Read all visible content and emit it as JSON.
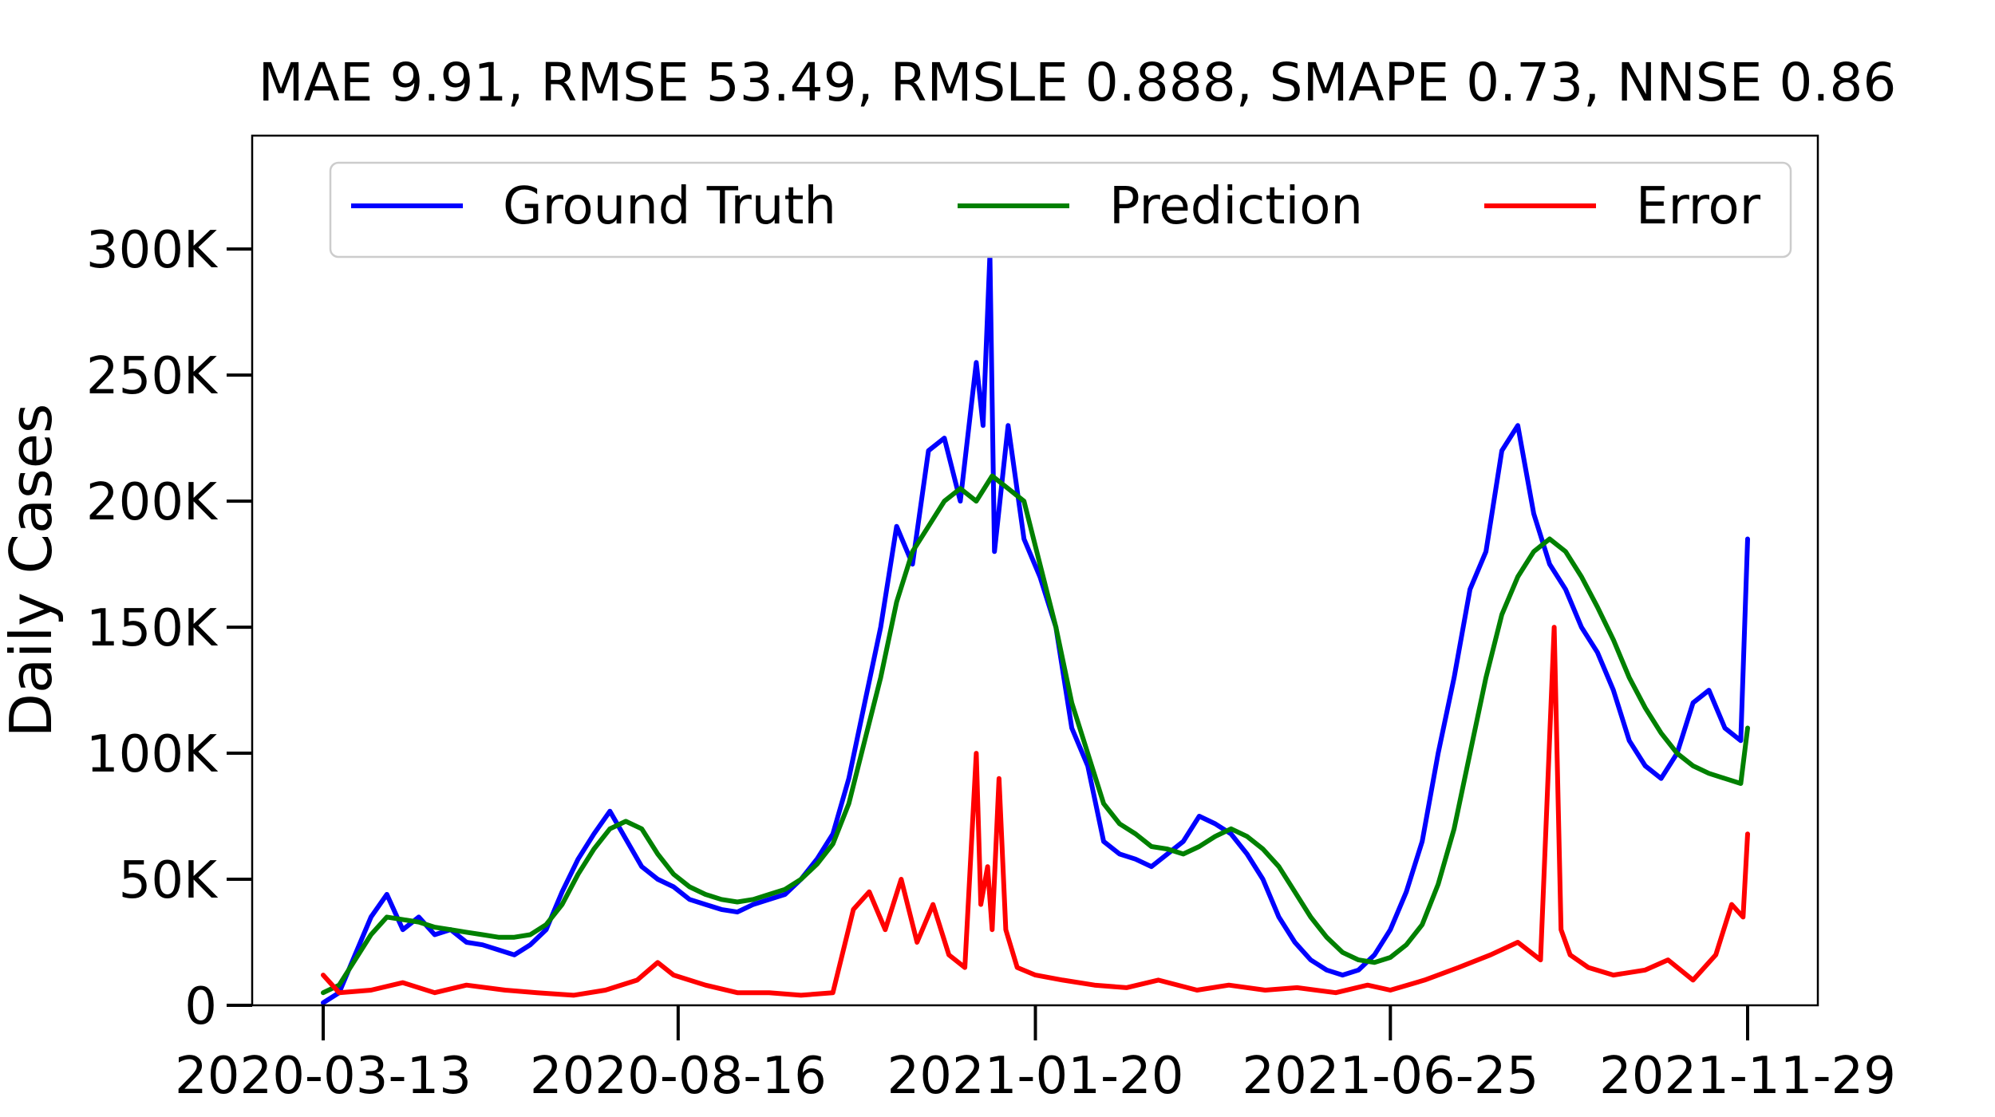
{
  "chart_data": {
    "type": "line",
    "title": "MAE 9.91, RMSE 53.49, RMSLE 0.888, SMAPE 0.73, NNSE 0.86",
    "xlabel": "",
    "ylabel": "Daily Cases",
    "x_start": "2020-03-13",
    "x_end": "2021-11-29",
    "xlim": [
      "2020-02-13",
      "2021-12-28"
    ],
    "ylim": [
      0,
      345000
    ],
    "xticks": [
      "2020-03-13",
      "2020-08-16",
      "2021-01-20",
      "2021-06-25",
      "2021-11-29"
    ],
    "yticks": [
      0,
      50000,
      100000,
      150000,
      200000,
      250000,
      300000
    ],
    "ytick_labels": [
      "0",
      "50K",
      "100K",
      "150K",
      "200K",
      "250K",
      "300K"
    ],
    "grid": false,
    "legend_position": "top",
    "series": [
      {
        "name": "Ground Truth",
        "color": "#0000ff",
        "x": [
          "2020-03-13",
          "2020-03-20",
          "2020-03-27",
          "2020-04-03",
          "2020-04-10",
          "2020-04-17",
          "2020-04-24",
          "2020-05-01",
          "2020-05-08",
          "2020-05-15",
          "2020-05-22",
          "2020-05-29",
          "2020-06-05",
          "2020-06-12",
          "2020-06-19",
          "2020-06-26",
          "2020-07-03",
          "2020-07-10",
          "2020-07-17",
          "2020-07-24",
          "2020-07-31",
          "2020-08-07",
          "2020-08-14",
          "2020-08-21",
          "2020-08-28",
          "2020-09-04",
          "2020-09-11",
          "2020-09-18",
          "2020-09-25",
          "2020-10-02",
          "2020-10-09",
          "2020-10-16",
          "2020-10-23",
          "2020-10-30",
          "2020-11-06",
          "2020-11-13",
          "2020-11-20",
          "2020-11-27",
          "2020-12-04",
          "2020-12-11",
          "2020-12-18",
          "2020-12-25",
          "2020-12-28",
          "2020-12-31",
          "2021-01-02",
          "2021-01-08",
          "2021-01-15",
          "2021-01-22",
          "2021-01-29",
          "2021-02-05",
          "2021-02-12",
          "2021-02-19",
          "2021-02-26",
          "2021-03-05",
          "2021-03-12",
          "2021-03-19",
          "2021-03-26",
          "2021-04-02",
          "2021-04-09",
          "2021-04-16",
          "2021-04-23",
          "2021-04-30",
          "2021-05-07",
          "2021-05-14",
          "2021-05-21",
          "2021-05-28",
          "2021-06-04",
          "2021-06-11",
          "2021-06-18",
          "2021-06-25",
          "2021-07-02",
          "2021-07-09",
          "2021-07-16",
          "2021-07-23",
          "2021-07-30",
          "2021-08-06",
          "2021-08-13",
          "2021-08-20",
          "2021-08-27",
          "2021-09-03",
          "2021-09-10",
          "2021-09-17",
          "2021-09-24",
          "2021-10-01",
          "2021-10-08",
          "2021-10-15",
          "2021-10-22",
          "2021-10-29",
          "2021-11-05",
          "2021-11-12",
          "2021-11-19",
          "2021-11-26",
          "2021-11-29"
        ],
        "y": [
          1000,
          5000,
          20000,
          35000,
          44000,
          30000,
          35000,
          28000,
          30000,
          25000,
          24000,
          22000,
          20000,
          24000,
          30000,
          45000,
          58000,
          68000,
          77000,
          66000,
          55000,
          50000,
          47000,
          42000,
          40000,
          38000,
          37000,
          40000,
          42000,
          44000,
          50000,
          58000,
          68000,
          90000,
          120000,
          150000,
          190000,
          175000,
          220000,
          225000,
          200000,
          255000,
          230000,
          298000,
          180000,
          230000,
          185000,
          170000,
          150000,
          110000,
          95000,
          65000,
          60000,
          58000,
          55000,
          60000,
          65000,
          75000,
          72000,
          68000,
          60000,
          50000,
          35000,
          25000,
          18000,
          14000,
          12000,
          14000,
          20000,
          30000,
          45000,
          65000,
          100000,
          130000,
          165000,
          180000,
          220000,
          230000,
          195000,
          175000,
          165000,
          150000,
          140000,
          125000,
          105000,
          95000,
          90000,
          100000,
          120000,
          125000,
          110000,
          105000,
          185000
        ]
      },
      {
        "name": "Prediction",
        "color": "#008000",
        "x": [
          "2020-03-13",
          "2020-03-20",
          "2020-03-27",
          "2020-04-03",
          "2020-04-10",
          "2020-04-17",
          "2020-04-24",
          "2020-05-01",
          "2020-05-08",
          "2020-05-15",
          "2020-05-22",
          "2020-05-29",
          "2020-06-05",
          "2020-06-12",
          "2020-06-19",
          "2020-06-26",
          "2020-07-03",
          "2020-07-10",
          "2020-07-17",
          "2020-07-24",
          "2020-07-31",
          "2020-08-07",
          "2020-08-14",
          "2020-08-21",
          "2020-08-28",
          "2020-09-04",
          "2020-09-11",
          "2020-09-18",
          "2020-09-25",
          "2020-10-02",
          "2020-10-09",
          "2020-10-16",
          "2020-10-23",
          "2020-10-30",
          "2020-11-06",
          "2020-11-13",
          "2020-11-20",
          "2020-11-27",
          "2020-12-04",
          "2020-12-11",
          "2020-12-18",
          "2020-12-25",
          "2021-01-01",
          "2021-01-08",
          "2021-01-15",
          "2021-01-22",
          "2021-01-29",
          "2021-02-05",
          "2021-02-12",
          "2021-02-19",
          "2021-02-26",
          "2021-03-05",
          "2021-03-12",
          "2021-03-19",
          "2021-03-26",
          "2021-04-02",
          "2021-04-09",
          "2021-04-16",
          "2021-04-23",
          "2021-04-30",
          "2021-05-07",
          "2021-05-14",
          "2021-05-21",
          "2021-05-28",
          "2021-06-04",
          "2021-06-11",
          "2021-06-18",
          "2021-06-25",
          "2021-07-02",
          "2021-07-09",
          "2021-07-16",
          "2021-07-23",
          "2021-07-30",
          "2021-08-06",
          "2021-08-13",
          "2021-08-20",
          "2021-08-27",
          "2021-09-03",
          "2021-09-10",
          "2021-09-17",
          "2021-09-24",
          "2021-10-01",
          "2021-10-08",
          "2021-10-15",
          "2021-10-22",
          "2021-10-29",
          "2021-11-05",
          "2021-11-12",
          "2021-11-19",
          "2021-11-26",
          "2021-11-29"
        ],
        "y": [
          5000,
          8000,
          18000,
          28000,
          35000,
          34000,
          33000,
          31000,
          30000,
          29000,
          28000,
          27000,
          27000,
          28000,
          32000,
          40000,
          52000,
          62000,
          70000,
          73000,
          70000,
          60000,
          52000,
          47000,
          44000,
          42000,
          41000,
          42000,
          44000,
          46000,
          50000,
          56000,
          64000,
          80000,
          105000,
          130000,
          160000,
          180000,
          190000,
          200000,
          205000,
          200000,
          210000,
          205000,
          200000,
          175000,
          150000,
          120000,
          100000,
          80000,
          72000,
          68000,
          63000,
          62000,
          60000,
          63000,
          67000,
          70000,
          67000,
          62000,
          55000,
          45000,
          35000,
          27000,
          21000,
          18000,
          17000,
          19000,
          24000,
          32000,
          48000,
          70000,
          100000,
          130000,
          155000,
          170000,
          180000,
          185000,
          180000,
          170000,
          158000,
          145000,
          130000,
          118000,
          108000,
          100000,
          95000,
          92000,
          90000,
          88000,
          110000
        ]
      },
      {
        "name": "Error",
        "color": "#ff0000",
        "x": [
          "2020-03-13",
          "2020-03-20",
          "2020-04-03",
          "2020-04-17",
          "2020-05-01",
          "2020-05-15",
          "2020-06-01",
          "2020-06-15",
          "2020-07-01",
          "2020-07-15",
          "2020-07-29",
          "2020-08-07",
          "2020-08-14",
          "2020-08-28",
          "2020-09-11",
          "2020-09-25",
          "2020-10-09",
          "2020-10-23",
          "2020-11-01",
          "2020-11-08",
          "2020-11-15",
          "2020-11-22",
          "2020-11-29",
          "2020-12-06",
          "2020-12-13",
          "2020-12-20",
          "2020-12-25",
          "2020-12-27",
          "2020-12-30",
          "2021-01-01",
          "2021-01-04",
          "2021-01-07",
          "2021-01-12",
          "2021-01-20",
          "2021-02-01",
          "2021-02-15",
          "2021-03-01",
          "2021-03-15",
          "2021-04-01",
          "2021-04-15",
          "2021-05-01",
          "2021-05-15",
          "2021-06-01",
          "2021-06-15",
          "2021-06-25",
          "2021-07-10",
          "2021-07-25",
          "2021-08-08",
          "2021-08-20",
          "2021-08-30",
          "2021-09-05",
          "2021-09-08",
          "2021-09-12",
          "2021-09-20",
          "2021-10-01",
          "2021-10-15",
          "2021-10-25",
          "2021-11-05",
          "2021-11-15",
          "2021-11-22",
          "2021-11-27",
          "2021-11-29"
        ],
        "y": [
          12000,
          5000,
          6000,
          9000,
          5000,
          8000,
          6000,
          5000,
          4000,
          6000,
          10000,
          17000,
          12000,
          8000,
          5000,
          5000,
          4000,
          5000,
          38000,
          45000,
          30000,
          50000,
          25000,
          40000,
          20000,
          15000,
          100000,
          40000,
          55000,
          30000,
          90000,
          30000,
          15000,
          12000,
          10000,
          8000,
          7000,
          10000,
          6000,
          8000,
          6000,
          7000,
          5000,
          8000,
          6000,
          10000,
          15000,
          20000,
          25000,
          18000,
          150000,
          30000,
          20000,
          15000,
          12000,
          14000,
          18000,
          10000,
          20000,
          40000,
          35000,
          68000
        ]
      }
    ]
  }
}
